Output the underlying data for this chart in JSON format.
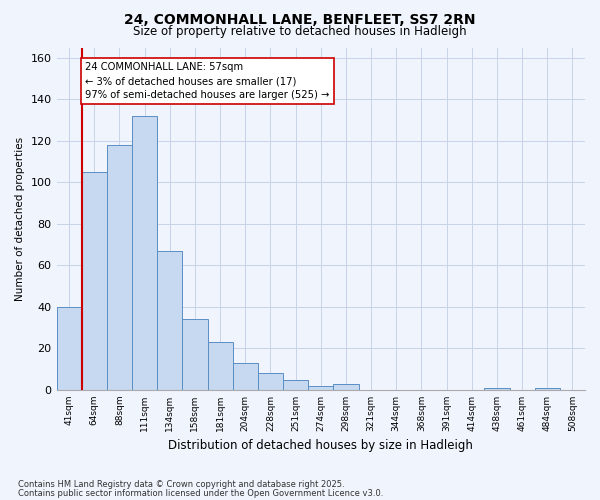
{
  "title": "24, COMMONHALL LANE, BENFLEET, SS7 2RN",
  "subtitle": "Size of property relative to detached houses in Hadleigh",
  "xlabel": "Distribution of detached houses by size in Hadleigh",
  "ylabel": "Number of detached properties",
  "bar_labels": [
    "41sqm",
    "64sqm",
    "88sqm",
    "111sqm",
    "134sqm",
    "158sqm",
    "181sqm",
    "204sqm",
    "228sqm",
    "251sqm",
    "274sqm",
    "298sqm",
    "321sqm",
    "344sqm",
    "368sqm",
    "391sqm",
    "414sqm",
    "438sqm",
    "461sqm",
    "484sqm",
    "508sqm"
  ],
  "bar_values": [
    40,
    105,
    118,
    132,
    67,
    34,
    23,
    13,
    8,
    5,
    2,
    3,
    0,
    0,
    0,
    0,
    0,
    1,
    0,
    1,
    0
  ],
  "bar_color": "#c6d9f0",
  "bar_edge_color": "#5b8ec4",
  "vline_color": "#cc0000",
  "annotation_line1": "24 COMMONHALL LANE: 57sqm",
  "annotation_line2": "← 3% of detached houses are smaller (17)",
  "annotation_line3": "97% of semi-detached houses are larger (525) →",
  "annotation_box_color": "#ffffff",
  "annotation_box_edge": "#cc0000",
  "ylim": [
    0,
    165
  ],
  "yticks": [
    0,
    20,
    40,
    60,
    80,
    100,
    120,
    140,
    160
  ],
  "footnote1": "Contains HM Land Registry data © Crown copyright and database right 2025.",
  "footnote2": "Contains public sector information licensed under the Open Government Licence v3.0.",
  "bg_color": "#f0f4fc",
  "grid_color": "#c8d4e8"
}
